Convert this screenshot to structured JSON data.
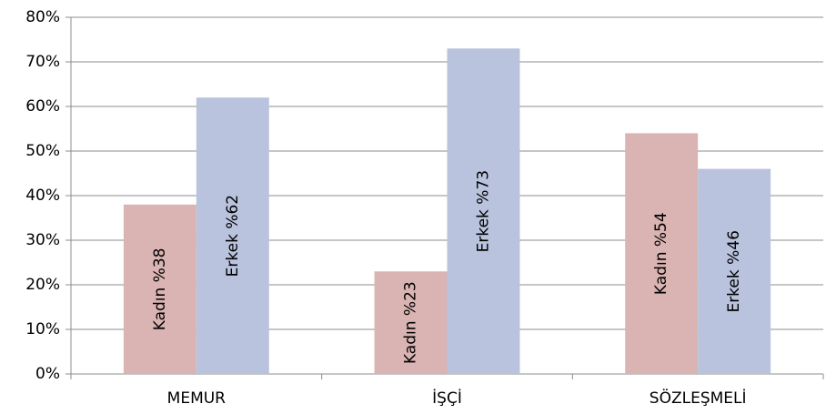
{
  "chart_data": {
    "type": "bar",
    "categories": [
      "MEMUR",
      "İŞÇİ",
      "SÖZLEŞMELİ"
    ],
    "series": [
      {
        "color": "#d9b4b3",
        "values": [
          38,
          23,
          54
        ],
        "value_labels": [
          "Kadın %38",
          "Kadın %23",
          "Kadın %54"
        ]
      },
      {
        "color": "#b9c3de",
        "values": [
          62,
          73,
          46
        ],
        "value_labels": [
          "Erkek %62",
          "Erkek %73",
          "Erkek %46"
        ]
      }
    ],
    "ylim": [
      0,
      80
    ],
    "yticks": [
      {
        "value": 0,
        "label": "0%"
      },
      {
        "value": 10,
        "label": "10%"
      },
      {
        "value": 20,
        "label": "20%"
      },
      {
        "value": 30,
        "label": "30%"
      },
      {
        "value": 40,
        "label": "40%"
      },
      {
        "value": 50,
        "label": "50%"
      },
      {
        "value": 60,
        "label": "60%"
      },
      {
        "value": 70,
        "label": "70%"
      },
      {
        "value": 80,
        "label": "80%"
      }
    ],
    "grid": true
  }
}
